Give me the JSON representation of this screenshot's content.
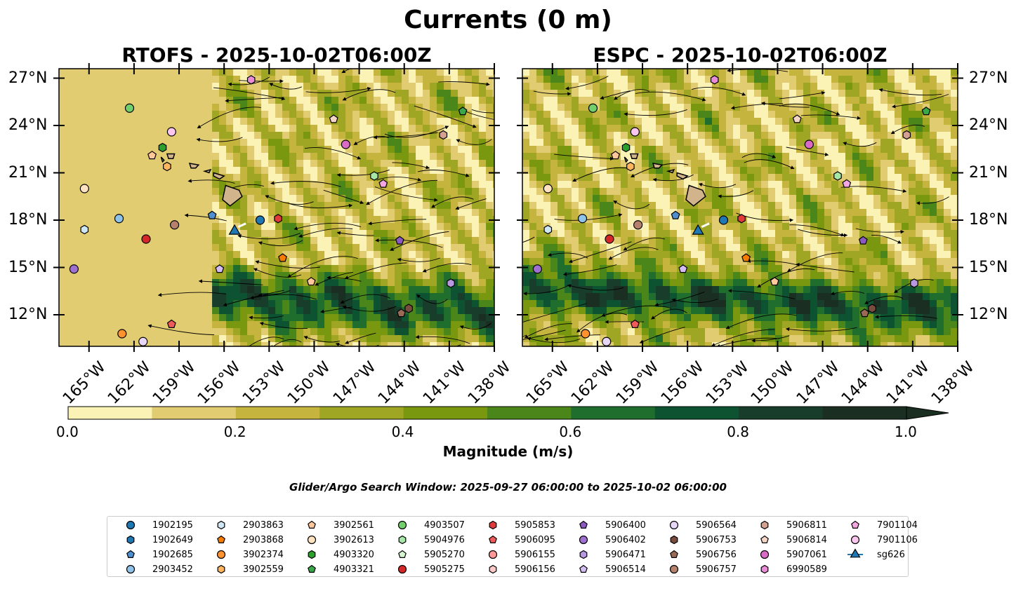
{
  "figure": {
    "suptitle": "Currents (0 m)",
    "search_window": "Glider/Argo Search Window: 2025-09-27 06:00:00 to 2025-10-02 06:00:00"
  },
  "panels": [
    {
      "id": "rtofs",
      "title": "RTOFS - 2025-10-02T06:00Z",
      "has_land_mask_west": true
    },
    {
      "id": "espc",
      "title": "ESPC - 2025-10-02T06:00Z",
      "has_land_mask_west": false
    }
  ],
  "axes": {
    "lat_ticks": [
      "27°N",
      "24°N",
      "21°N",
      "18°N",
      "15°N",
      "12°N"
    ],
    "lon_ticks": [
      "165°W",
      "162°W",
      "159°W",
      "156°W",
      "153°W",
      "150°W",
      "147°W",
      "144°W",
      "141°W",
      "138°W"
    ],
    "lat_values": [
      27,
      24,
      21,
      18,
      15,
      12
    ],
    "lon_values": [
      -165,
      -162,
      -159,
      -156,
      -153,
      -150,
      -147,
      -144,
      -141,
      -138
    ],
    "lon_range": [
      -167,
      -138
    ],
    "lat_range": [
      10.0,
      27.6
    ]
  },
  "colorbar": {
    "label": "Magnitude (m/s)",
    "ticks": [
      "0.0",
      "0.2",
      "0.4",
      "0.6",
      "0.8",
      "1.0"
    ],
    "range": [
      0,
      1
    ],
    "extend": "max",
    "colors": [
      "#fbf2b5",
      "#e1cc72",
      "#c5b43d",
      "#9ea623",
      "#79980f",
      "#4b861b",
      "#1f6e2d",
      "#0d5332",
      "#183d2b",
      "#1a2e22"
    ]
  },
  "colors": {
    "mask_blue": "#98b5e0",
    "land": "#d2b48c"
  },
  "markers": [
    {
      "id": "1902195",
      "symbol": "circle",
      "color": "#1f77b4"
    },
    {
      "id": "1902649",
      "symbol": "hexagon",
      "color": "#1f77b4"
    },
    {
      "id": "1902685",
      "symbol": "pentagon",
      "color": "#4f8fd0"
    },
    {
      "id": "2903452",
      "symbol": "circle",
      "color": "#8fc3e8"
    },
    {
      "id": "2903863",
      "symbol": "hexagon",
      "color": "#cfe6f4"
    },
    {
      "id": "2903868",
      "symbol": "pentagon",
      "color": "#f57c00"
    },
    {
      "id": "3902374",
      "symbol": "circle",
      "color": "#ff922f"
    },
    {
      "id": "3902559",
      "symbol": "hexagon",
      "color": "#ffb65e"
    },
    {
      "id": "3902561",
      "symbol": "pentagon",
      "color": "#ffc79a"
    },
    {
      "id": "3902613",
      "symbol": "circle",
      "color": "#ffe3c1"
    },
    {
      "id": "4903320",
      "symbol": "hexagon",
      "color": "#2ca02c"
    },
    {
      "id": "4903321",
      "symbol": "pentagon",
      "color": "#3aa84a"
    },
    {
      "id": "4903507",
      "symbol": "circle",
      "color": "#73cf6c"
    },
    {
      "id": "5904976",
      "symbol": "hexagon",
      "color": "#a6e6a6"
    },
    {
      "id": "5905270",
      "symbol": "pentagon",
      "color": "#d4f5cf"
    },
    {
      "id": "5905275",
      "symbol": "circle",
      "color": "#d62728"
    },
    {
      "id": "5905853",
      "symbol": "hexagon",
      "color": "#e03a3a"
    },
    {
      "id": "5906095",
      "symbol": "pentagon",
      "color": "#ef5a5a"
    },
    {
      "id": "5906155",
      "symbol": "circle",
      "color": "#ff9896"
    },
    {
      "id": "5906156",
      "symbol": "hexagon",
      "color": "#ffc9c7"
    },
    {
      "id": "5906400",
      "symbol": "pentagon",
      "color": "#8a5ac0"
    },
    {
      "id": "5906402",
      "symbol": "circle",
      "color": "#9e70cf"
    },
    {
      "id": "5906471",
      "symbol": "hexagon",
      "color": "#b898e0"
    },
    {
      "id": "5906514",
      "symbol": "pentagon",
      "color": "#d3bdf2"
    },
    {
      "id": "5906564",
      "symbol": "circle",
      "color": "#e8d6f7"
    },
    {
      "id": "5906753",
      "symbol": "hexagon",
      "color": "#7a4c3f"
    },
    {
      "id": "5906756",
      "symbol": "pentagon",
      "color": "#9b6a56"
    },
    {
      "id": "5906757",
      "symbol": "circle",
      "color": "#b5816c"
    },
    {
      "id": "5906811",
      "symbol": "hexagon",
      "color": "#d4a090"
    },
    {
      "id": "5906814",
      "symbol": "pentagon",
      "color": "#f5d6c6"
    },
    {
      "id": "5907061",
      "symbol": "circle",
      "color": "#d96bc6"
    },
    {
      "id": "6990589",
      "symbol": "hexagon",
      "color": "#e98bd6"
    },
    {
      "id": "7901104",
      "symbol": "pentagon",
      "color": "#f4a6e2"
    },
    {
      "id": "7901106",
      "symbol": "circle",
      "color": "#fbc6ee"
    },
    {
      "id": "sg626",
      "symbol": "triangle",
      "color": "#1f77b4"
    }
  ],
  "platform_positions": {
    "rtofs": [
      {
        "id": "4903507",
        "lon": -162.3,
        "lat": 25.1
      },
      {
        "id": "7901106",
        "lon": -159.5,
        "lat": 23.6
      },
      {
        "id": "4903320",
        "lon": -160.1,
        "lat": 22.6
      },
      {
        "id": "3902561",
        "lon": -160.8,
        "lat": 22.1
      },
      {
        "id": "3902559",
        "lon": -159.8,
        "lat": 21.4
      },
      {
        "id": "3902613",
        "lon": -165.3,
        "lat": 20.0
      },
      {
        "id": "2903452",
        "lon": -163.0,
        "lat": 18.1
      },
      {
        "id": "5906757",
        "lon": -159.3,
        "lat": 17.7
      },
      {
        "id": "2903863",
        "lon": -165.3,
        "lat": 17.4
      },
      {
        "id": "5905275",
        "lon": -161.2,
        "lat": 16.8
      },
      {
        "id": "5906402",
        "lon": -166.0,
        "lat": 14.9
      },
      {
        "id": "3902374",
        "lon": -162.8,
        "lat": 10.8
      },
      {
        "id": "5906564",
        "lon": -161.4,
        "lat": 10.3
      },
      {
        "id": "6990589",
        "lon": -154.2,
        "lat": 26.9
      },
      {
        "id": "5906814",
        "lon": -148.7,
        "lat": 24.4
      },
      {
        "id": "5907061",
        "lon": -147.9,
        "lat": 22.8
      },
      {
        "id": "5906811",
        "lon": -141.4,
        "lat": 23.4
      },
      {
        "id": "4903321",
        "lon": -140.1,
        "lat": 24.9
      },
      {
        "id": "5904976",
        "lon": -146.0,
        "lat": 20.8
      },
      {
        "id": "7901104",
        "lon": -145.4,
        "lat": 20.3
      },
      {
        "id": "1902685",
        "lon": -156.8,
        "lat": 18.3
      },
      {
        "id": "sg626",
        "lon": -155.3,
        "lat": 17.3
      },
      {
        "id": "1902195",
        "lon": -153.6,
        "lat": 18.0
      },
      {
        "id": "5905853",
        "lon": -152.4,
        "lat": 18.1
      },
      {
        "id": "5906400",
        "lon": -144.3,
        "lat": 16.7
      },
      {
        "id": "2903868",
        "lon": -152.1,
        "lat": 15.6
      },
      {
        "id": "5906514",
        "lon": -156.3,
        "lat": 14.9
      },
      {
        "id": "3902561b",
        "lon": -150.2,
        "lat": 14.1
      },
      {
        "id": "5906471",
        "lon": -140.9,
        "lat": 14.0
      },
      {
        "id": "5906756",
        "lon": -144.2,
        "lat": 12.1
      },
      {
        "id": "5906753",
        "lon": -143.7,
        "lat": 12.4
      },
      {
        "id": "5906095",
        "lon": -159.5,
        "lat": 11.4
      }
    ]
  },
  "legend": {
    "entries": [
      "1902195",
      "1902649",
      "1902685",
      "2903452",
      "2903863",
      "2903868",
      "3902374",
      "3902559",
      "3902561",
      "3902613",
      "4903320",
      "4903321",
      "4903507",
      "5904976",
      "5905270",
      "5905275",
      "5905853",
      "5906095",
      "5906155",
      "5906156",
      "5906400",
      "5906402",
      "5906471",
      "5906514",
      "5906564",
      "5906753",
      "5906756",
      "5906757",
      "5906811",
      "5906814",
      "5907061",
      "6990589",
      "7901104",
      "7901106",
      "sg626"
    ]
  }
}
